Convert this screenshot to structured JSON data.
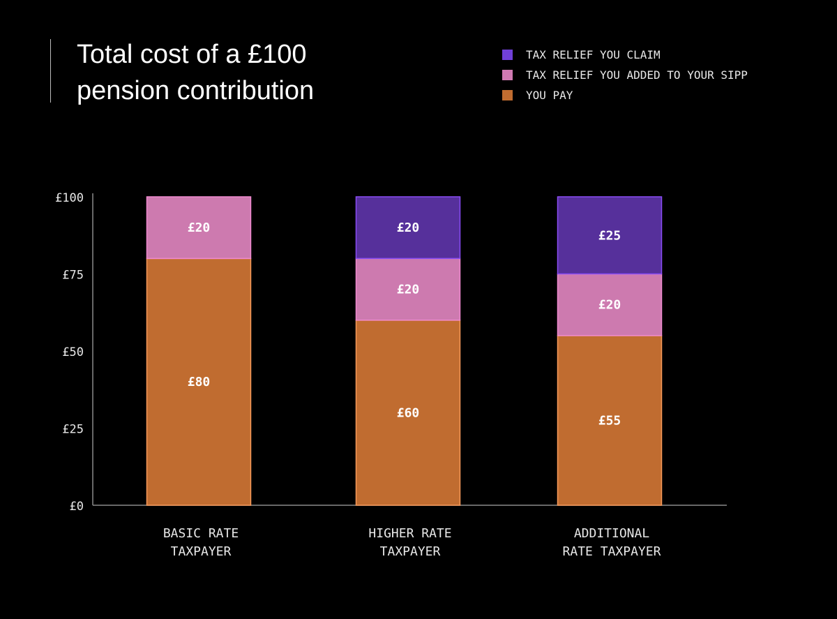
{
  "chart_data": {
    "type": "bar",
    "stacked": true,
    "title_lines": [
      "Total cost of a £100",
      "pension contribution"
    ],
    "categories": [
      [
        "BASIC RATE",
        "TAXPAYER"
      ],
      [
        "HIGHER RATE",
        "TAXPAYER"
      ],
      [
        "ADDITIONAL",
        "RATE TAXPAYER"
      ]
    ],
    "series": [
      {
        "name": "YOU PAY",
        "values": [
          80,
          60,
          55
        ],
        "color": "#c06c30",
        "stroke": "#f79a5a"
      },
      {
        "name": "TAX RELIEF YOU ADDED TO YOUR SIPP",
        "values": [
          20,
          20,
          20
        ],
        "color": "#cd7aaf",
        "stroke": "#f08ad0"
      },
      {
        "name": "TAX RELIEF YOU CLAIM",
        "values": [
          0,
          20,
          25
        ],
        "color": "#56309b",
        "stroke": "#8a4cf5"
      }
    ],
    "value_labels": [
      [
        "£80",
        "£20",
        ""
      ],
      [
        "£60",
        "£20",
        "£20"
      ],
      [
        "£55",
        "£20",
        "£25"
      ]
    ],
    "y_ticks": [
      {
        "value": 0,
        "label": "£0"
      },
      {
        "value": 25,
        "label": "£25"
      },
      {
        "value": 50,
        "label": "£50"
      },
      {
        "value": 75,
        "label": "£75"
      },
      {
        "value": 100,
        "label": "£100"
      }
    ],
    "ylim": [
      0,
      103
    ],
    "legend": [
      {
        "label": "TAX RELIEF YOU CLAIM",
        "color": "#7040d8"
      },
      {
        "label": "TAX RELIEF YOU ADDED TO YOUR SIPP",
        "color": "#d07ab2"
      },
      {
        "label": "YOU PAY",
        "color": "#c06c30"
      }
    ],
    "legend_position": "top-right",
    "grid": false
  }
}
